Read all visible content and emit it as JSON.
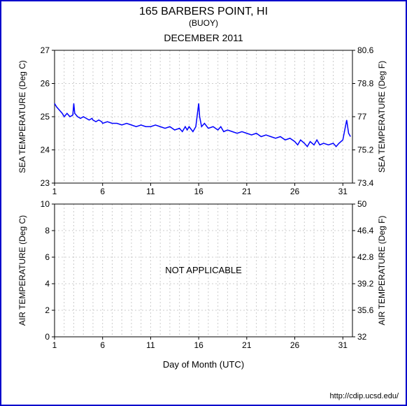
{
  "header": {
    "title": "165 BARBERS POINT, HI",
    "subtitle": "(BUOY)",
    "period": "DECEMBER 2011"
  },
  "credit": "http://cdip.ucsd.edu/",
  "axis_x": {
    "label": "Day of Month (UTC)",
    "ticks": [
      1,
      6,
      11,
      16,
      21,
      26,
      31
    ],
    "lim": [
      1,
      32
    ],
    "fontsize": 12
  },
  "colors": {
    "border": "#0000cc",
    "series": "#0000ff",
    "grid": "#cccccc",
    "axis": "#000000",
    "background": "#ffffff"
  },
  "sea_chart": {
    "type": "line",
    "y_left": {
      "label": "SEA TEMPERATURE (Deg C)",
      "lim": [
        23,
        27
      ],
      "ticks": [
        23,
        24,
        25,
        26,
        27
      ]
    },
    "y_right": {
      "label": "SEA TEMPERATURE (Deg F)",
      "lim": [
        73.4,
        80.6
      ],
      "ticks": [
        73.4,
        75.2,
        77,
        78.8,
        80.6
      ]
    },
    "line_width": 1.5,
    "data": [
      [
        1,
        25.4
      ],
      [
        1.2,
        25.3
      ],
      [
        1.5,
        25.2
      ],
      [
        1.8,
        25.1
      ],
      [
        2,
        25.0
      ],
      [
        2.3,
        25.1
      ],
      [
        2.6,
        25.0
      ],
      [
        2.9,
        25.05
      ],
      [
        3,
        25.4
      ],
      [
        3.1,
        25.1
      ],
      [
        3.4,
        25.0
      ],
      [
        3.7,
        24.95
      ],
      [
        4,
        25.0
      ],
      [
        4.3,
        24.95
      ],
      [
        4.6,
        24.9
      ],
      [
        4.9,
        24.95
      ],
      [
        5,
        24.9
      ],
      [
        5.3,
        24.85
      ],
      [
        5.6,
        24.9
      ],
      [
        5.9,
        24.85
      ],
      [
        6,
        24.8
      ],
      [
        6.5,
        24.85
      ],
      [
        7,
        24.8
      ],
      [
        7.5,
        24.8
      ],
      [
        8,
        24.75
      ],
      [
        8.5,
        24.8
      ],
      [
        9,
        24.75
      ],
      [
        9.5,
        24.7
      ],
      [
        10,
        24.75
      ],
      [
        10.5,
        24.7
      ],
      [
        11,
        24.7
      ],
      [
        11.5,
        24.75
      ],
      [
        12,
        24.7
      ],
      [
        12.5,
        24.65
      ],
      [
        13,
        24.7
      ],
      [
        13.5,
        24.6
      ],
      [
        14,
        24.65
      ],
      [
        14.3,
        24.55
      ],
      [
        14.6,
        24.7
      ],
      [
        14.8,
        24.6
      ],
      [
        15,
        24.7
      ],
      [
        15.4,
        24.55
      ],
      [
        15.7,
        24.7
      ],
      [
        16,
        25.4
      ],
      [
        16.1,
        25.0
      ],
      [
        16.3,
        24.7
      ],
      [
        16.6,
        24.8
      ],
      [
        17,
        24.65
      ],
      [
        17.5,
        24.7
      ],
      [
        18,
        24.6
      ],
      [
        18.3,
        24.7
      ],
      [
        18.6,
        24.55
      ],
      [
        19,
        24.6
      ],
      [
        19.5,
        24.55
      ],
      [
        20,
        24.5
      ],
      [
        20.5,
        24.55
      ],
      [
        21,
        24.5
      ],
      [
        21.5,
        24.45
      ],
      [
        22,
        24.5
      ],
      [
        22.5,
        24.4
      ],
      [
        23,
        24.45
      ],
      [
        23.5,
        24.4
      ],
      [
        24,
        24.35
      ],
      [
        24.5,
        24.4
      ],
      [
        25,
        24.3
      ],
      [
        25.5,
        24.35
      ],
      [
        26,
        24.25
      ],
      [
        26.3,
        24.15
      ],
      [
        26.6,
        24.3
      ],
      [
        27,
        24.2
      ],
      [
        27.3,
        24.1
      ],
      [
        27.6,
        24.25
      ],
      [
        28,
        24.15
      ],
      [
        28.3,
        24.3
      ],
      [
        28.6,
        24.15
      ],
      [
        29,
        24.2
      ],
      [
        29.5,
        24.15
      ],
      [
        30,
        24.2
      ],
      [
        30.3,
        24.1
      ],
      [
        30.6,
        24.2
      ],
      [
        31,
        24.3
      ],
      [
        31.2,
        24.6
      ],
      [
        31.4,
        24.9
      ],
      [
        31.6,
        24.5
      ],
      [
        31.8,
        24.4
      ]
    ]
  },
  "air_chart": {
    "type": "line",
    "y_left": {
      "label": "AIR TEMPERATURE (Deg C)",
      "lim": [
        0,
        10
      ],
      "ticks": [
        0,
        2,
        4,
        6,
        8,
        10
      ]
    },
    "y_right": {
      "label": "AIR TEMPERATURE (Deg F)",
      "lim": [
        32,
        50
      ],
      "ticks": [
        32,
        35.6,
        39.2,
        42.8,
        46.4,
        50
      ]
    },
    "overlay_text": "NOT APPLICABLE",
    "data": []
  }
}
